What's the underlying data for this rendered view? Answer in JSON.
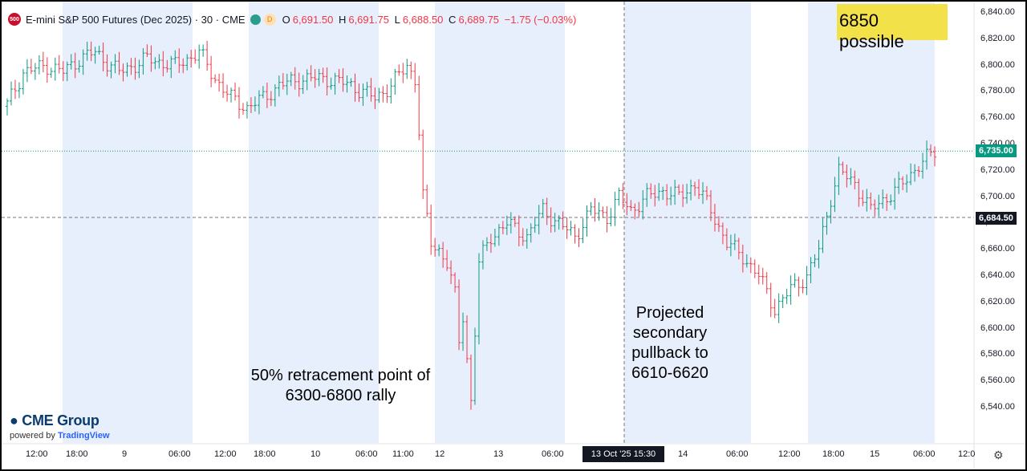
{
  "header": {
    "logo_text": "500",
    "symbol": "E-mini S&P 500 Futures (Dec 2025) · 30 · CME",
    "d_badge": "D",
    "open_key": "O",
    "open": "6,691.50",
    "high_key": "H",
    "high": "6,691.75",
    "low_key": "L",
    "low": "6,688.50",
    "close_key": "C",
    "close": "6,689.75",
    "change": "−1.75 (−0.03%)"
  },
  "annotations": {
    "target": "6850 possible",
    "retracement": "50% retracement point of 6300-6800 rally",
    "projection": "Projected secondary pullback to 6610-6620"
  },
  "price_tags": {
    "last": "6,735.00",
    "crosshair": "6,684.50"
  },
  "crosshair_time": "13 Oct '25   15:30",
  "branding": {
    "name": "CME Group",
    "powered": "powered by",
    "platform": "TradingView"
  },
  "colors": {
    "up": "#089981",
    "down": "#f23645",
    "session_band": "#e8effc",
    "last_price": "#089981",
    "highlight": "#f3e14a"
  },
  "chart_data": {
    "type": "candlestick",
    "title": "E-mini S&P 500 Futures (Dec 2025) · 30 · CME",
    "ylim": [
      6530,
      6845
    ],
    "yticks": [
      6540,
      6560,
      6580,
      6600,
      6620,
      6640,
      6660,
      6680,
      6700,
      6720,
      6740,
      6760,
      6780,
      6800,
      6820,
      6840
    ],
    "y_tick_labels": [
      "6,540.00",
      "6,560.00",
      "6,580.00",
      "6,600.00",
      "6,620.00",
      "6,640.00",
      "6,660.00",
      "6,680.00",
      "6,700.00",
      "6,720.00",
      "6,740.00",
      "6,760.00",
      "6,780.00",
      "6,800.00",
      "6,820.00",
      "6,840.00"
    ],
    "x_tick_labels": [
      "12:00",
      "18:00",
      "9",
      "06:00",
      "12:00",
      "18:00",
      "10",
      "06:00",
      "11:00",
      "12",
      "13",
      "06:00",
      "14",
      "06:00",
      "12:00",
      "18:00",
      "15",
      "06:00",
      "12:0"
    ],
    "last_price": 6735.0,
    "crosshair_price": 6684.5,
    "knots": [
      [
        0,
        6770
      ],
      [
        4,
        6795
      ],
      [
        10,
        6800
      ],
      [
        14,
        6795
      ],
      [
        18,
        6805
      ],
      [
        22,
        6810
      ],
      [
        28,
        6795
      ],
      [
        35,
        6805
      ],
      [
        42,
        6800
      ],
      [
        48,
        6810
      ],
      [
        52,
        6790
      ],
      [
        56,
        6775
      ],
      [
        60,
        6768
      ],
      [
        64,
        6775
      ],
      [
        68,
        6785
      ],
      [
        74,
        6790
      ],
      [
        80,
        6790
      ],
      [
        86,
        6785
      ],
      [
        92,
        6775
      ],
      [
        96,
        6785
      ],
      [
        100,
        6800
      ],
      [
        102,
        6790
      ],
      [
        103,
        6750
      ],
      [
        104,
        6700
      ],
      [
        106,
        6665
      ],
      [
        108,
        6660
      ],
      [
        110,
        6650
      ],
      [
        112,
        6625
      ],
      [
        113,
        6590
      ],
      [
        114,
        6610
      ],
      [
        116,
        6545
      ],
      [
        118,
        6650
      ],
      [
        121,
        6670
      ],
      [
        125,
        6680
      ],
      [
        130,
        6670
      ],
      [
        134,
        6690
      ],
      [
        138,
        6680
      ],
      [
        142,
        6670
      ],
      [
        146,
        6690
      ],
      [
        150,
        6685
      ],
      [
        153,
        6700
      ],
      [
        156,
        6690
      ],
      [
        160,
        6700
      ],
      [
        164,
        6705
      ],
      [
        168,
        6700
      ],
      [
        172,
        6710
      ],
      [
        176,
        6690
      ],
      [
        180,
        6665
      ],
      [
        184,
        6655
      ],
      [
        188,
        6640
      ],
      [
        192,
        6615
      ],
      [
        196,
        6630
      ],
      [
        200,
        6640
      ],
      [
        203,
        6660
      ],
      [
        206,
        6700
      ],
      [
        208,
        6720
      ],
      [
        212,
        6710
      ],
      [
        216,
        6690
      ],
      [
        220,
        6700
      ],
      [
        224,
        6710
      ],
      [
        228,
        6725
      ],
      [
        232,
        6734
      ]
    ]
  }
}
